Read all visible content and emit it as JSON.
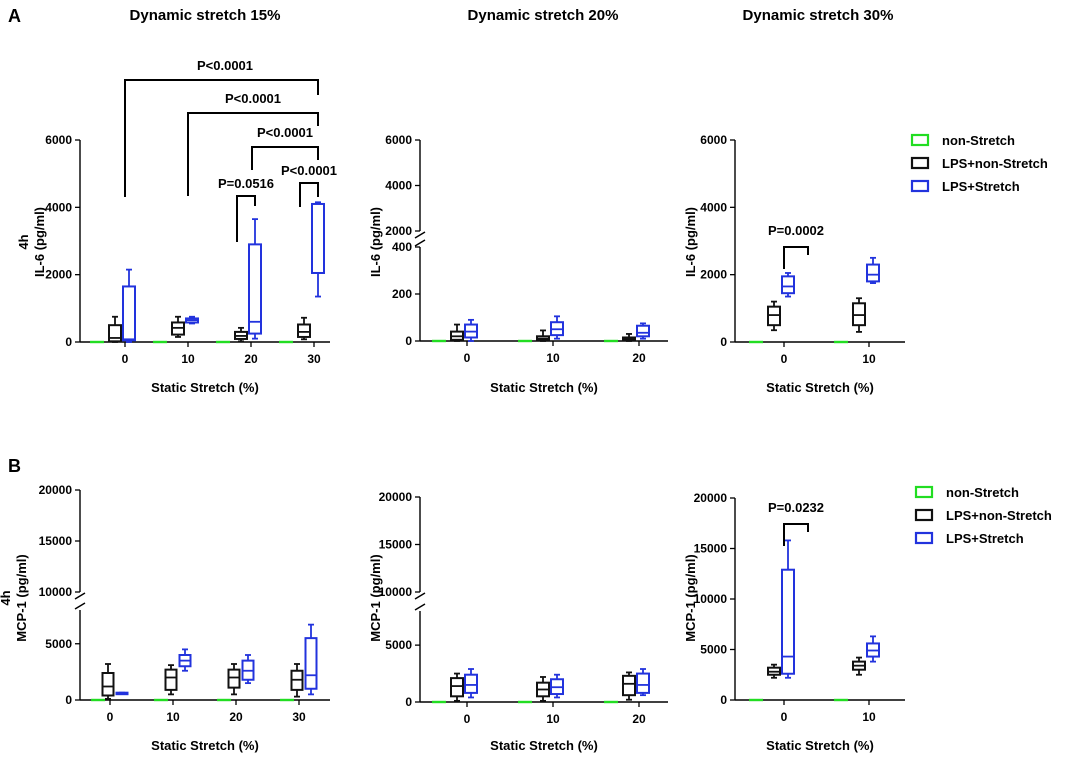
{
  "figure": {
    "panel_labels": [
      "A",
      "B"
    ],
    "column_titles": [
      "Dynamic stretch 15%",
      "Dynamic stretch 20%",
      "Dynamic stretch 30%"
    ],
    "colors": {
      "non_stretch": "#22dd22",
      "lps_non_stretch": "#111111",
      "lps_stretch": "#2233dd"
    }
  },
  "legend": {
    "entries": [
      {
        "label": "non-Stretch",
        "color": "#22dd22"
      },
      {
        "label": "LPS+non-Stretch",
        "color": "#111111"
      },
      {
        "label": "LPS+Stretch",
        "color": "#2233dd"
      }
    ]
  },
  "chart_data": [
    {
      "type": "box",
      "id": "A1",
      "panel": "A",
      "title": "Dynamic stretch 15%",
      "ylabel": "4h\nIL-6 (pg/ml)",
      "xlabel": "Static Stretch (%)",
      "categories": [
        "0",
        "10",
        "20",
        "30"
      ],
      "yticks": [
        "0",
        "2000",
        "4000",
        "6000"
      ],
      "ylim": [
        0,
        6000
      ],
      "series": [
        {
          "name": "non-Stretch",
          "color": "#22dd22",
          "boxes": [
            [
              0,
              0,
              0,
              0,
              0
            ],
            [
              0,
              0,
              0,
              0,
              0
            ],
            [
              0,
              0,
              0,
              0,
              0
            ],
            [
              0,
              0,
              0,
              0,
              0
            ]
          ]
        },
        {
          "name": "LPS+non-Stretch",
          "color": "#111111",
          "boxes": [
            [
              0,
              20,
              120,
              500,
              750
            ],
            [
              150,
              220,
              420,
              580,
              750
            ],
            [
              20,
              90,
              180,
              300,
              420
            ],
            [
              80,
              150,
              300,
              520,
              720
            ]
          ]
        },
        {
          "name": "LPS+Stretch",
          "color": "#2233dd",
          "boxes": [
            [
              0,
              50,
              80,
              1650,
              2150
            ],
            [
              550,
              580,
              650,
              700,
              750
            ],
            [
              100,
              250,
              600,
              2900,
              3650
            ],
            [
              1350,
              2050,
              2050,
              4100,
              4150
            ]
          ]
        }
      ],
      "significance": [
        {
          "label": "P<0.0001"
        },
        {
          "label": "P<0.0001"
        },
        {
          "label": "P<0.0001"
        },
        {
          "label": "P=0.0516"
        },
        {
          "label": "P<0.0001"
        }
      ]
    },
    {
      "type": "box",
      "id": "A2",
      "panel": "A",
      "title": "Dynamic stretch 20%",
      "ylabel": "IL-6 (pg/ml)",
      "xlabel": "Static Stretch (%)",
      "categories": [
        "0",
        "10",
        "20"
      ],
      "yticks": [
        "0",
        "200",
        "400",
        "2000",
        "4000",
        "6000"
      ],
      "ylim": [
        0,
        6000
      ],
      "axis_break": [
        400,
        2000
      ],
      "series": [
        {
          "name": "non-Stretch",
          "color": "#22dd22",
          "boxes": [
            [
              0,
              0,
              0,
              0,
              0
            ],
            [
              0,
              0,
              0,
              0,
              0
            ],
            [
              0,
              0,
              0,
              0,
              0
            ]
          ]
        },
        {
          "name": "LPS+non-Stretch",
          "color": "#111111",
          "boxes": [
            [
              0,
              5,
              20,
              40,
              70
            ],
            [
              0,
              3,
              10,
              20,
              45
            ],
            [
              0,
              2,
              8,
              15,
              30
            ]
          ]
        },
        {
          "name": "LPS+Stretch",
          "color": "#2233dd",
          "boxes": [
            [
              0,
              15,
              40,
              70,
              90
            ],
            [
              10,
              25,
              50,
              80,
              105
            ],
            [
              10,
              20,
              35,
              65,
              75
            ]
          ]
        }
      ],
      "significance": []
    },
    {
      "type": "box",
      "id": "A3",
      "panel": "A",
      "title": "Dynamic stretch 30%",
      "ylabel": "IL-6 (pg/ml)",
      "xlabel": "Static Stretch (%)",
      "categories": [
        "0",
        "10"
      ],
      "yticks": [
        "0",
        "2000",
        "4000",
        "6000"
      ],
      "ylim": [
        0,
        6000
      ],
      "series": [
        {
          "name": "non-Stretch",
          "color": "#22dd22",
          "boxes": [
            [
              0,
              0,
              0,
              0,
              0
            ],
            [
              0,
              0,
              0,
              0,
              0
            ]
          ]
        },
        {
          "name": "LPS+non-Stretch",
          "color": "#111111",
          "boxes": [
            [
              350,
              500,
              800,
              1050,
              1200
            ],
            [
              300,
              500,
              800,
              1150,
              1300
            ]
          ]
        },
        {
          "name": "LPS+Stretch",
          "color": "#2233dd",
          "boxes": [
            [
              1350,
              1450,
              1650,
              1950,
              2050
            ],
            [
              1750,
              1800,
              2000,
              2300,
              2500
            ]
          ]
        }
      ],
      "significance": [
        {
          "label": "P=0.0002"
        }
      ]
    },
    {
      "type": "box",
      "id": "B1",
      "panel": "B",
      "ylabel": "4h\nMCP-1 (pg/ml)",
      "xlabel": "Static Stretch (%)",
      "categories": [
        "0",
        "10",
        "20",
        "30"
      ],
      "yticks": [
        "0",
        "5000",
        "10000",
        "15000",
        "20000"
      ],
      "ylim": [
        0,
        20000
      ],
      "axis_break": [
        8000,
        10000
      ],
      "series": [
        {
          "name": "non-Stretch",
          "color": "#22dd22",
          "boxes": [
            [
              0,
              0,
              0,
              0,
              0
            ],
            [
              0,
              0,
              0,
              0,
              0
            ],
            [
              0,
              0,
              0,
              0,
              0
            ],
            [
              0,
              0,
              0,
              0,
              0
            ]
          ]
        },
        {
          "name": "LPS+non-Stretch",
          "color": "#111111",
          "boxes": [
            [
              100,
              400,
              1200,
              2400,
              3200
            ],
            [
              500,
              900,
              2000,
              2700,
              3100
            ],
            [
              500,
              1100,
              2000,
              2700,
              3200
            ],
            [
              300,
              900,
              1800,
              2600,
              3200
            ]
          ]
        },
        {
          "name": "LPS+Stretch",
          "color": "#2233dd",
          "boxes": [
            [
              600,
              600,
              600,
              650,
              650
            ],
            [
              2600,
              3000,
              3500,
              4000,
              4500
            ],
            [
              1500,
              1800,
              2600,
              3500,
              4000
            ],
            [
              500,
              1000,
              2200,
              5500,
              6700
            ]
          ]
        }
      ],
      "significance": []
    },
    {
      "type": "box",
      "id": "B2",
      "panel": "B",
      "ylabel": "MCP-1 (pg/ml)",
      "xlabel": "Static Stretch (%)",
      "categories": [
        "0",
        "10",
        "20"
      ],
      "yticks": [
        "0",
        "5000",
        "10000",
        "15000",
        "20000"
      ],
      "ylim": [
        0,
        20000
      ],
      "axis_break": [
        8000,
        10000
      ],
      "series": [
        {
          "name": "non-Stretch",
          "color": "#22dd22",
          "boxes": [
            [
              0,
              0,
              0,
              0,
              0
            ],
            [
              0,
              0,
              0,
              0,
              0
            ],
            [
              0,
              0,
              0,
              0,
              0
            ]
          ]
        },
        {
          "name": "LPS+non-Stretch",
          "color": "#111111",
          "boxes": [
            [
              100,
              500,
              1400,
              2100,
              2500
            ],
            [
              100,
              500,
              1100,
              1700,
              2200
            ],
            [
              200,
              600,
              1600,
              2300,
              2600
            ]
          ]
        },
        {
          "name": "LPS+Stretch",
          "color": "#2233dd",
          "boxes": [
            [
              400,
              800,
              1500,
              2400,
              2900
            ],
            [
              400,
              700,
              1300,
              2000,
              2400
            ],
            [
              600,
              800,
              1500,
              2500,
              2900
            ]
          ]
        }
      ],
      "significance": []
    },
    {
      "type": "box",
      "id": "B3",
      "panel": "B",
      "ylabel": "MCP-1 (pg/ml)",
      "xlabel": "Static Stretch (%)",
      "categories": [
        "0",
        "10"
      ],
      "yticks": [
        "0",
        "5000",
        "10000",
        "15000",
        "20000"
      ],
      "ylim": [
        0,
        20000
      ],
      "series": [
        {
          "name": "non-Stretch",
          "color": "#22dd22",
          "boxes": [
            [
              0,
              0,
              0,
              0,
              0
            ],
            [
              0,
              0,
              0,
              0,
              0
            ]
          ]
        },
        {
          "name": "LPS+non-Stretch",
          "color": "#111111",
          "boxes": [
            [
              2200,
              2500,
              2800,
              3200,
              3500
            ],
            [
              2500,
              3000,
              3400,
              3800,
              4200
            ]
          ]
        },
        {
          "name": "LPS+Stretch",
          "color": "#2233dd",
          "boxes": [
            [
              2200,
              2600,
              4300,
              12900,
              15800
            ],
            [
              3800,
              4300,
              4900,
              5600,
              6300
            ]
          ]
        }
      ],
      "significance": [
        {
          "label": "P=0.0232"
        }
      ]
    }
  ]
}
